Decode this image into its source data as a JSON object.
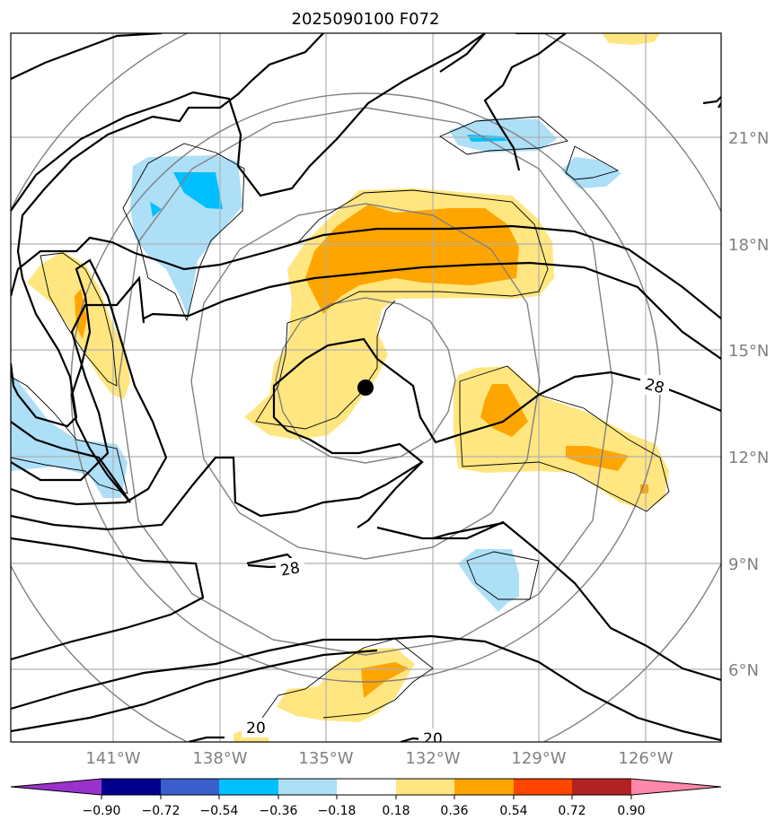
{
  "chart_data": {
    "type": "contour",
    "title": "2025090100 F072",
    "x_axis": {
      "ticks": [
        "141°W",
        "138°W",
        "135°W",
        "132°W",
        "129°W",
        "126°W"
      ],
      "range": [
        -144,
        -124
      ]
    },
    "y_axis": {
      "ticks": [
        "21°N",
        "18°N",
        "15°N",
        "12°N",
        "9°N",
        "6°N"
      ],
      "range": [
        4,
        24
      ]
    },
    "grid": true,
    "storm_center": {
      "lon": -133.9,
      "lat": 13.9
    },
    "contour_labels": [
      "28",
      "28",
      "20",
      "20"
    ],
    "colorbar": {
      "orientation": "horizontal",
      "extend": "both",
      "levels": [
        "−0.90",
        "−0.72",
        "−0.54",
        "−0.36",
        "−0.18",
        "0.18",
        "0.36",
        "0.54",
        "0.72",
        "0.90"
      ],
      "colors": [
        "#9932CC",
        "#00008B",
        "#3A5FCD",
        "#00BFFF",
        "#ADDFF7",
        "#FFFFFF",
        "#FFE680",
        "#FFA500",
        "#FF4500",
        "#B22222",
        "#FF88AA"
      ]
    }
  }
}
